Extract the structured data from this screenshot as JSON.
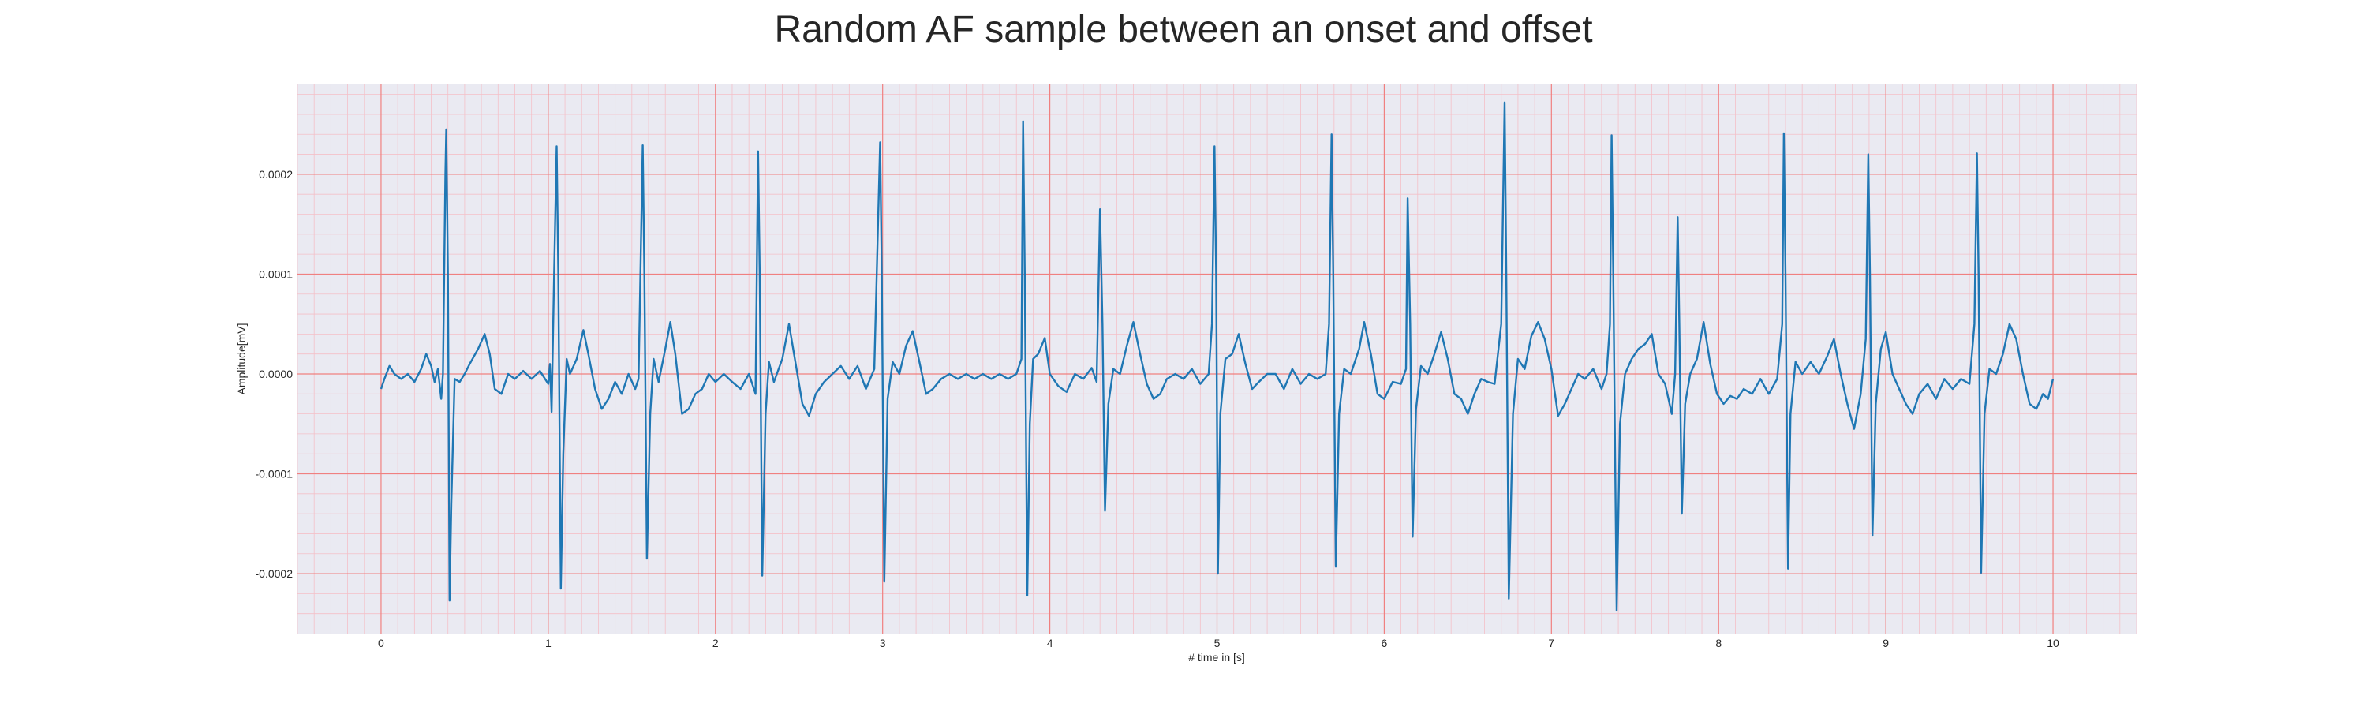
{
  "chart_data": {
    "type": "line",
    "title": "Random AF sample between an onset and offset",
    "xlabel": "# time in [s]",
    "ylabel": "Amplitude[mV]",
    "xlim": [
      -0.5,
      10.5
    ],
    "ylim": [
      -0.00026,
      0.00029
    ],
    "xticks": [
      0,
      1,
      2,
      3,
      4,
      5,
      6,
      7,
      8,
      9,
      10
    ],
    "xtick_labels": [
      "0",
      "1",
      "2",
      "3",
      "4",
      "5",
      "6",
      "7",
      "8",
      "9",
      "10"
    ],
    "yticks": [
      -0.0002,
      -0.0001,
      0.0,
      0.0001,
      0.0002
    ],
    "ytick_labels": [
      "-0.0002",
      "-0.0001",
      "0.0000",
      "0.0001",
      "0.0002"
    ],
    "grid": true,
    "minor_grid": true,
    "colors": {
      "line": "#1f77b4",
      "plot_background": "#eaeaf2",
      "major_grid": "#f08080",
      "minor_grid": "#f4c0c8"
    },
    "series": [
      {
        "line_points": [
          [
            0.0,
            -1.5e-05
          ],
          [
            0.02,
            -5e-06
          ],
          [
            0.05,
            8e-06
          ],
          [
            0.08,
            0.0
          ],
          [
            0.12,
            -5e-06
          ],
          [
            0.16,
            0.0
          ],
          [
            0.2,
            -8e-06
          ],
          [
            0.24,
            5e-06
          ],
          [
            0.27,
            2e-05
          ],
          [
            0.3,
            8e-06
          ],
          [
            0.32,
            -8e-06
          ],
          [
            0.34,
            5e-06
          ],
          [
            0.36,
            -2.5e-05
          ],
          [
            0.37,
            0.0
          ],
          [
            0.385,
            0.0002
          ],
          [
            0.39,
            0.000245
          ],
          [
            0.4,
            0.0001
          ],
          [
            0.41,
            -0.000227
          ],
          [
            0.42,
            -0.00013
          ],
          [
            0.44,
            -5e-06
          ],
          [
            0.47,
            -8e-06
          ],
          [
            0.5,
            0.0
          ],
          [
            0.53,
            1e-05
          ],
          [
            0.58,
            2.5e-05
          ],
          [
            0.62,
            4e-05
          ],
          [
            0.65,
            2e-05
          ],
          [
            0.68,
            -1.5e-05
          ],
          [
            0.72,
            -2e-05
          ],
          [
            0.76,
            0.0
          ],
          [
            0.8,
            -5e-06
          ],
          [
            0.85,
            3e-06
          ],
          [
            0.9,
            -5e-06
          ],
          [
            0.95,
            3e-06
          ],
          [
            1.0,
            -1e-05
          ],
          [
            1.01,
            1e-05
          ],
          [
            1.02,
            -3.8e-05
          ],
          [
            1.035,
            0.0001
          ],
          [
            1.05,
            0.000228
          ],
          [
            1.06,
            0.0001
          ],
          [
            1.075,
            -0.000215
          ],
          [
            1.09,
            -8e-05
          ],
          [
            1.11,
            1.5e-05
          ],
          [
            1.13,
            0.0
          ],
          [
            1.17,
            1.5e-05
          ],
          [
            1.21,
            4.4e-05
          ],
          [
            1.24,
            2e-05
          ],
          [
            1.28,
            -1.5e-05
          ],
          [
            1.32,
            -3.5e-05
          ],
          [
            1.36,
            -2.5e-05
          ],
          [
            1.4,
            -8e-06
          ],
          [
            1.44,
            -2e-05
          ],
          [
            1.48,
            0.0
          ],
          [
            1.52,
            -1.5e-05
          ],
          [
            1.54,
            -5e-06
          ],
          [
            1.565,
            0.000229
          ],
          [
            1.575,
            0.0001
          ],
          [
            1.59,
            -0.000185
          ],
          [
            1.61,
            -4e-05
          ],
          [
            1.63,
            1.5e-05
          ],
          [
            1.66,
            -8e-06
          ],
          [
            1.7,
            2.5e-05
          ],
          [
            1.73,
            5.2e-05
          ],
          [
            1.76,
            2e-05
          ],
          [
            1.8,
            -4e-05
          ],
          [
            1.84,
            -3.5e-05
          ],
          [
            1.88,
            -2e-05
          ],
          [
            1.92,
            -1.5e-05
          ],
          [
            1.96,
            0.0
          ],
          [
            2.0,
            -8e-06
          ],
          [
            2.05,
            0.0
          ],
          [
            2.1,
            -8e-06
          ],
          [
            2.15,
            -1.5e-05
          ],
          [
            2.2,
            0.0
          ],
          [
            2.24,
            -2e-05
          ],
          [
            2.255,
            0.000223
          ],
          [
            2.265,
            0.0001
          ],
          [
            2.28,
            -0.000202
          ],
          [
            2.3,
            -4e-05
          ],
          [
            2.32,
            1.2e-05
          ],
          [
            2.35,
            -8e-06
          ],
          [
            2.4,
            1.5e-05
          ],
          [
            2.44,
            5e-05
          ],
          [
            2.48,
            1e-05
          ],
          [
            2.52,
            -3e-05
          ],
          [
            2.56,
            -4.2e-05
          ],
          [
            2.6,
            -2e-05
          ],
          [
            2.65,
            -8e-06
          ],
          [
            2.7,
            0.0
          ],
          [
            2.75,
            8e-06
          ],
          [
            2.8,
            -5e-06
          ],
          [
            2.85,
            8e-06
          ],
          [
            2.9,
            -1.5e-05
          ],
          [
            2.95,
            5e-06
          ],
          [
            2.985,
            0.000232
          ],
          [
            2.995,
            0.0001
          ],
          [
            3.01,
            -0.000208
          ],
          [
            3.03,
            -2.5e-05
          ],
          [
            3.06,
            1.2e-05
          ],
          [
            3.1,
            0.0
          ],
          [
            3.14,
            2.8e-05
          ],
          [
            3.18,
            4.3e-05
          ],
          [
            3.22,
            1.2e-05
          ],
          [
            3.26,
            -2e-05
          ],
          [
            3.3,
            -1.5e-05
          ],
          [
            3.35,
            -5e-06
          ],
          [
            3.4,
            0.0
          ],
          [
            3.45,
            -5e-06
          ],
          [
            3.5,
            0.0
          ],
          [
            3.55,
            -5e-06
          ],
          [
            3.6,
            0.0
          ],
          [
            3.65,
            -5e-06
          ],
          [
            3.7,
            0.0
          ],
          [
            3.75,
            -5e-06
          ],
          [
            3.8,
            0.0
          ],
          [
            3.83,
            1.5e-05
          ],
          [
            3.84,
            0.000253
          ],
          [
            3.85,
            0.0001
          ],
          [
            3.865,
            -0.000222
          ],
          [
            3.88,
            -5e-05
          ],
          [
            3.9,
            1.5e-05
          ],
          [
            3.93,
            2e-05
          ],
          [
            3.97,
            3.6e-05
          ],
          [
            4.0,
            0.0
          ],
          [
            4.05,
            -1.2e-05
          ],
          [
            4.1,
            -1.8e-05
          ],
          [
            4.15,
            0.0
          ],
          [
            4.2,
            -5e-06
          ],
          [
            4.25,
            6e-06
          ],
          [
            4.28,
            -8e-06
          ],
          [
            4.3,
            0.000165
          ],
          [
            4.315,
            5e-05
          ],
          [
            4.33,
            -0.000137
          ],
          [
            4.35,
            -3e-05
          ],
          [
            4.38,
            5e-06
          ],
          [
            4.42,
            0.0
          ],
          [
            4.46,
            2.8e-05
          ],
          [
            4.5,
            5.2e-05
          ],
          [
            4.54,
            2e-05
          ],
          [
            4.58,
            -1e-05
          ],
          [
            4.62,
            -2.5e-05
          ],
          [
            4.66,
            -2e-05
          ],
          [
            4.7,
            -5e-06
          ],
          [
            4.75,
            0.0
          ],
          [
            4.8,
            -5e-06
          ],
          [
            4.85,
            5e-06
          ],
          [
            4.9,
            -1e-05
          ],
          [
            4.95,
            0.0
          ],
          [
            4.97,
            5e-05
          ],
          [
            4.985,
            0.000228
          ],
          [
            4.995,
            0.0001
          ],
          [
            5.005,
            -0.0002
          ],
          [
            5.02,
            -4e-05
          ],
          [
            5.05,
            1.5e-05
          ],
          [
            5.09,
            2e-05
          ],
          [
            5.13,
            4e-05
          ],
          [
            5.17,
            1e-05
          ],
          [
            5.21,
            -1.5e-05
          ],
          [
            5.25,
            -8e-06
          ],
          [
            5.3,
            0.0
          ],
          [
            5.35,
            0.0
          ],
          [
            5.4,
            -1.5e-05
          ],
          [
            5.45,
            5e-06
          ],
          [
            5.5,
            -1e-05
          ],
          [
            5.55,
            0.0
          ],
          [
            5.6,
            -5e-06
          ],
          [
            5.65,
            0.0
          ],
          [
            5.67,
            5e-05
          ],
          [
            5.685,
            0.00024
          ],
          [
            5.695,
            0.0001
          ],
          [
            5.71,
            -0.000193
          ],
          [
            5.73,
            -4e-05
          ],
          [
            5.76,
            5e-06
          ],
          [
            5.8,
            0.0
          ],
          [
            5.85,
            2.5e-05
          ],
          [
            5.88,
            5.2e-05
          ],
          [
            5.92,
            2e-05
          ],
          [
            5.96,
            -2e-05
          ],
          [
            6.0,
            -2.5e-05
          ],
          [
            6.05,
            -8e-06
          ],
          [
            6.1,
            -1e-05
          ],
          [
            6.13,
            5e-06
          ],
          [
            6.14,
            0.000176
          ],
          [
            6.155,
            5e-05
          ],
          [
            6.17,
            -0.000163
          ],
          [
            6.19,
            -3.5e-05
          ],
          [
            6.22,
            8e-06
          ],
          [
            6.26,
            0.0
          ],
          [
            6.3,
            2e-05
          ],
          [
            6.34,
            4.2e-05
          ],
          [
            6.38,
            1.5e-05
          ],
          [
            6.42,
            -2e-05
          ],
          [
            6.46,
            -2.5e-05
          ],
          [
            6.5,
            -4e-05
          ],
          [
            6.54,
            -2e-05
          ],
          [
            6.58,
            -5e-06
          ],
          [
            6.62,
            -8e-06
          ],
          [
            6.66,
            -1e-05
          ],
          [
            6.7,
            5e-05
          ],
          [
            6.72,
            0.000272
          ],
          [
            6.73,
            0.0001
          ],
          [
            6.745,
            -0.000225
          ],
          [
            6.77,
            -4e-05
          ],
          [
            6.8,
            1.5e-05
          ],
          [
            6.84,
            5e-06
          ],
          [
            6.88,
            3.8e-05
          ],
          [
            6.92,
            5.2e-05
          ],
          [
            6.96,
            3.5e-05
          ],
          [
            7.0,
            5e-06
          ],
          [
            7.04,
            -4.2e-05
          ],
          [
            7.08,
            -3e-05
          ],
          [
            7.12,
            -1.5e-05
          ],
          [
            7.16,
            0.0
          ],
          [
            7.2,
            -5e-06
          ],
          [
            7.25,
            5e-06
          ],
          [
            7.3,
            -1.5e-05
          ],
          [
            7.33,
            0.0
          ],
          [
            7.35,
            5e-05
          ],
          [
            7.36,
            0.000239
          ],
          [
            7.37,
            0.0001
          ],
          [
            7.39,
            -0.000237
          ],
          [
            7.41,
            -5e-05
          ],
          [
            7.44,
            0.0
          ],
          [
            7.48,
            1.5e-05
          ],
          [
            7.52,
            2.5e-05
          ],
          [
            7.56,
            3e-05
          ],
          [
            7.6,
            4e-05
          ],
          [
            7.64,
            0.0
          ],
          [
            7.68,
            -1e-05
          ],
          [
            7.72,
            -4e-05
          ],
          [
            7.74,
            0.0
          ],
          [
            7.755,
            0.000157
          ],
          [
            7.765,
            5e-05
          ],
          [
            7.78,
            -0.00014
          ],
          [
            7.8,
            -3e-05
          ],
          [
            7.83,
            0.0
          ],
          [
            7.87,
            1.5e-05
          ],
          [
            7.91,
            5.2e-05
          ],
          [
            7.95,
            1e-05
          ],
          [
            7.99,
            -2e-05
          ],
          [
            8.03,
            -3e-05
          ],
          [
            8.07,
            -2.2e-05
          ],
          [
            8.11,
            -2.5e-05
          ],
          [
            8.15,
            -1.5e-05
          ],
          [
            8.2,
            -2e-05
          ],
          [
            8.25,
            -5e-06
          ],
          [
            8.3,
            -2e-05
          ],
          [
            8.35,
            -5e-06
          ],
          [
            8.38,
            5e-05
          ],
          [
            8.39,
            0.000241
          ],
          [
            8.4,
            0.0001
          ],
          [
            8.415,
            -0.000195
          ],
          [
            8.43,
            -4e-05
          ],
          [
            8.46,
            1.2e-05
          ],
          [
            8.5,
            0.0
          ],
          [
            8.55,
            1.2e-05
          ],
          [
            8.6,
            0.0
          ],
          [
            8.65,
            1.8e-05
          ],
          [
            8.69,
            3.5e-05
          ],
          [
            8.73,
            0.0
          ],
          [
            8.77,
            -3e-05
          ],
          [
            8.81,
            -5.5e-05
          ],
          [
            8.85,
            -2e-05
          ],
          [
            8.88,
            3.5e-05
          ],
          [
            8.895,
            0.00022
          ],
          [
            8.905,
            0.0001
          ],
          [
            8.92,
            -0.000162
          ],
          [
            8.94,
            -3e-05
          ],
          [
            8.97,
            2.5e-05
          ],
          [
            9.0,
            4.2e-05
          ],
          [
            9.04,
            0.0
          ],
          [
            9.08,
            -1.5e-05
          ],
          [
            9.12,
            -3e-05
          ],
          [
            9.16,
            -4e-05
          ],
          [
            9.2,
            -2e-05
          ],
          [
            9.25,
            -1e-05
          ],
          [
            9.3,
            -2.5e-05
          ],
          [
            9.35,
            -5e-06
          ],
          [
            9.4,
            -1.5e-05
          ],
          [
            9.45,
            -5e-06
          ],
          [
            9.5,
            -1e-05
          ],
          [
            9.53,
            5e-05
          ],
          [
            9.545,
            0.000221
          ],
          [
            9.555,
            0.0001
          ],
          [
            9.57,
            -0.000199
          ],
          [
            9.59,
            -4e-05
          ],
          [
            9.62,
            5e-06
          ],
          [
            9.66,
            0.0
          ],
          [
            9.7,
            2e-05
          ],
          [
            9.74,
            5e-05
          ],
          [
            9.78,
            3.5e-05
          ],
          [
            9.82,
            0.0
          ],
          [
            9.86,
            -3e-05
          ],
          [
            9.9,
            -3.5e-05
          ],
          [
            9.94,
            -2e-05
          ],
          [
            9.97,
            -2.5e-05
          ],
          [
            10.0,
            -5e-06
          ]
        ]
      }
    ]
  }
}
